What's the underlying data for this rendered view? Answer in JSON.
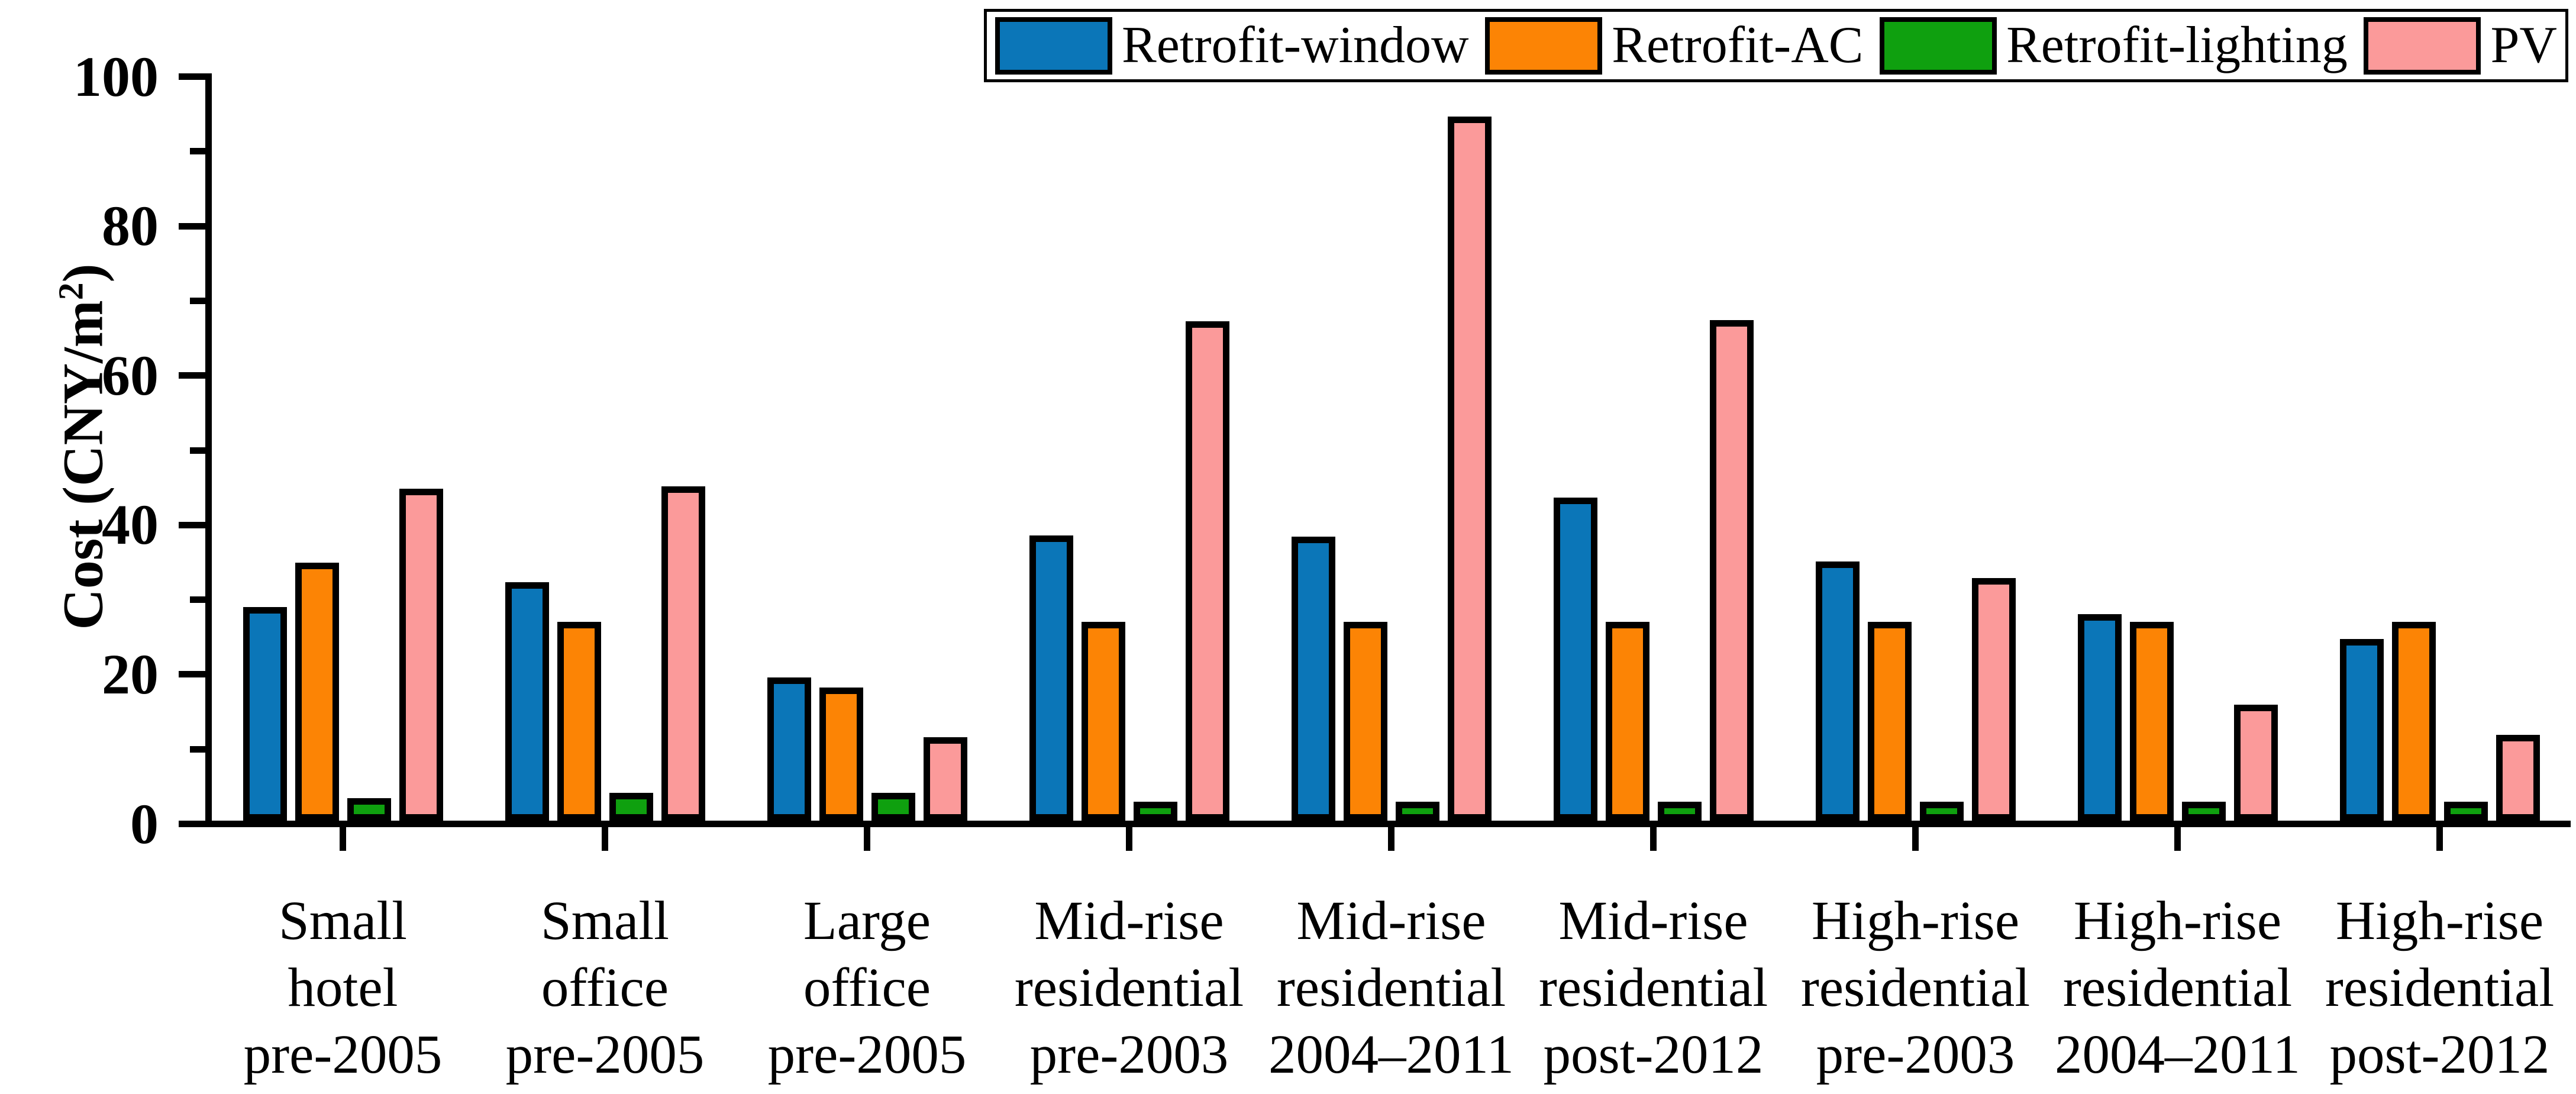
{
  "chart_data": {
    "type": "bar",
    "title": "",
    "ylabel": {
      "prefix": "Cost (CNY/m",
      "sup": "2",
      "suffix": ")"
    },
    "ylim": [
      0,
      100
    ],
    "y_major_ticks": [
      0,
      20,
      40,
      60,
      80,
      100
    ],
    "y_minor_ticks": [
      10,
      30,
      50,
      70,
      90
    ],
    "grid": false,
    "legend_position": "top-right",
    "background": "#ffffff",
    "axis_color": "#000000",
    "bar_outline_color": "#000000",
    "categories": [
      [
        "Small",
        "hotel",
        "pre-2005"
      ],
      [
        "Small",
        "office",
        "pre-2005"
      ],
      [
        "Large",
        "office",
        "pre-2005"
      ],
      [
        "Mid-rise",
        "residential",
        "pre-2003"
      ],
      [
        "Mid-rise",
        "residential",
        "2004–2011"
      ],
      [
        "Mid-rise",
        "residential",
        "post-2012"
      ],
      [
        "High-rise",
        "residential",
        "pre-2003"
      ],
      [
        "High-rise",
        "residential",
        "2004–2011"
      ],
      [
        "High-rise",
        "residential",
        "post-2012"
      ]
    ],
    "series": [
      {
        "name": "Retrofit-window",
        "color": "#0b76b8",
        "values": [
          28.6,
          31.9,
          19.2,
          38.2,
          38.0,
          43.2,
          34.7,
          27.6,
          24.3
        ]
      },
      {
        "name": "Retrofit-AC",
        "color": "#fc8405",
        "values": [
          34.5,
          26.6,
          17.8,
          26.6,
          26.6,
          26.6,
          26.6,
          26.6,
          26.6
        ]
      },
      {
        "name": "Retrofit-lighting",
        "color": "#0fa00f",
        "values": [
          3.0,
          3.7,
          3.7,
          2.5,
          2.5,
          2.5,
          2.5,
          2.5,
          2.5
        ]
      },
      {
        "name": "PV",
        "color": "#fb9a9a",
        "values": [
          44.4,
          44.7,
          11.2,
          66.8,
          94.2,
          67.0,
          32.5,
          15.5,
          11.5
        ]
      }
    ]
  }
}
